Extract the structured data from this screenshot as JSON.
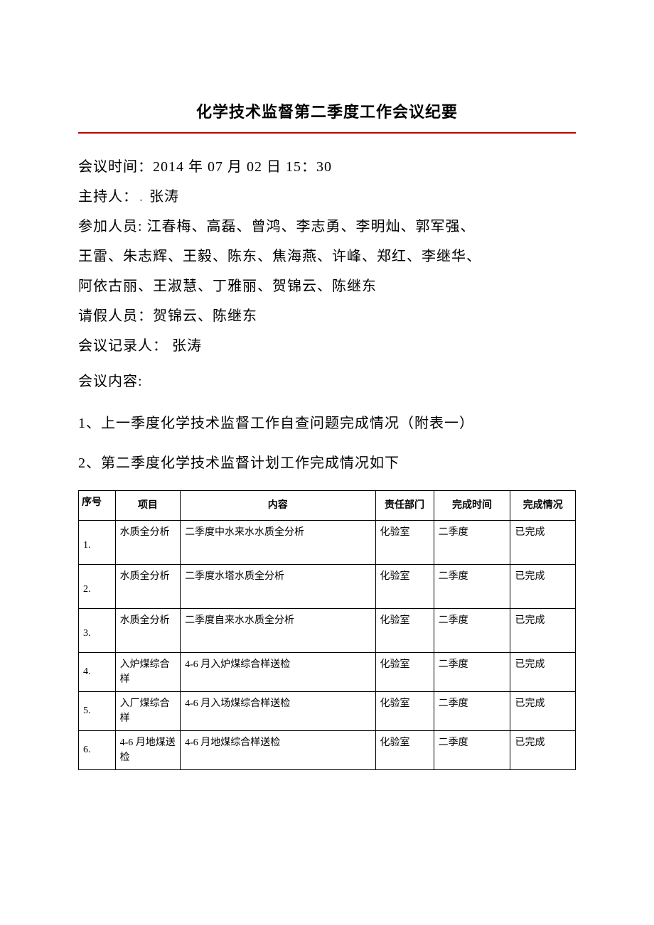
{
  "title": "化学技术监督第二季度工作会议纪要",
  "divider_color": "#c00000",
  "meeting": {
    "time_label": "会议时间：",
    "time_value": "2014 年 07 月 02 日 15：30",
    "host_label": "主持人：",
    "host_value": "张涛",
    "attendees_label": "参加人员:",
    "attendees_line1": " 江春梅、高磊、曾鸿、李志勇、李明灿、郭军强、",
    "attendees_line2": "王雷、朱志辉、王毅、陈东、焦海燕、许峰、郑红、李继华、",
    "attendees_line3": "阿依古丽、王淑慧、丁雅丽、贺锦云、陈继东",
    "absent_label": "请假人员：",
    "absent_value": "贺锦云、陈继东",
    "recorder_label": "会议记录人：",
    "recorder_value": "张涛",
    "content_label": "会议内容:",
    "item1": "1、上一季度化学技术监督工作自查问题完成情况（附表一）",
    "item2": "2、第二季度化学技术监督计划工作完成情况如下"
  },
  "table": {
    "headers": {
      "seq": "序号",
      "project": "项目",
      "content": "内容",
      "dept": "责任部门",
      "time": "完成时间",
      "status": "完成情况"
    },
    "rows": [
      {
        "seq": "1.",
        "project": "水质全分析",
        "content": "二季度中水来水水质全分析",
        "dept": "化验室",
        "time": "二季度",
        "status": "已完成"
      },
      {
        "seq": "2.",
        "project": "水质全分析",
        "content": "二季度水塔水质全分析",
        "dept": "化验室",
        "time": "二季度",
        "status": "已完成"
      },
      {
        "seq": "3.",
        "project": "水质全分析",
        "content": "二季度自来水水质全分析",
        "dept": "化验室",
        "time": "二季度",
        "status": "已完成"
      },
      {
        "seq": "4.",
        "project": "入炉煤综合样",
        "content": "4-6 月入炉煤综合样送检",
        "dept": "化验室",
        "time": "二季度",
        "status": "已完成"
      },
      {
        "seq": "5.",
        "project": "入厂煤综合样",
        "content": "4-6 月入场煤综合样送检",
        "dept": "化验室",
        "time": "二季度",
        "status": "已完成"
      },
      {
        "seq": "6.",
        "project": "4-6 月地煤送检",
        "content": "4-6 月地煤综合样送检",
        "dept": "化验室",
        "time": "二季度",
        "status": "已完成"
      }
    ]
  },
  "styles": {
    "background_color": "#ffffff",
    "text_color": "#000000",
    "title_fontsize": 22,
    "body_fontsize": 20,
    "table_fontsize": 14,
    "border_color": "#000000",
    "host_dot_color": "#4472c4"
  }
}
